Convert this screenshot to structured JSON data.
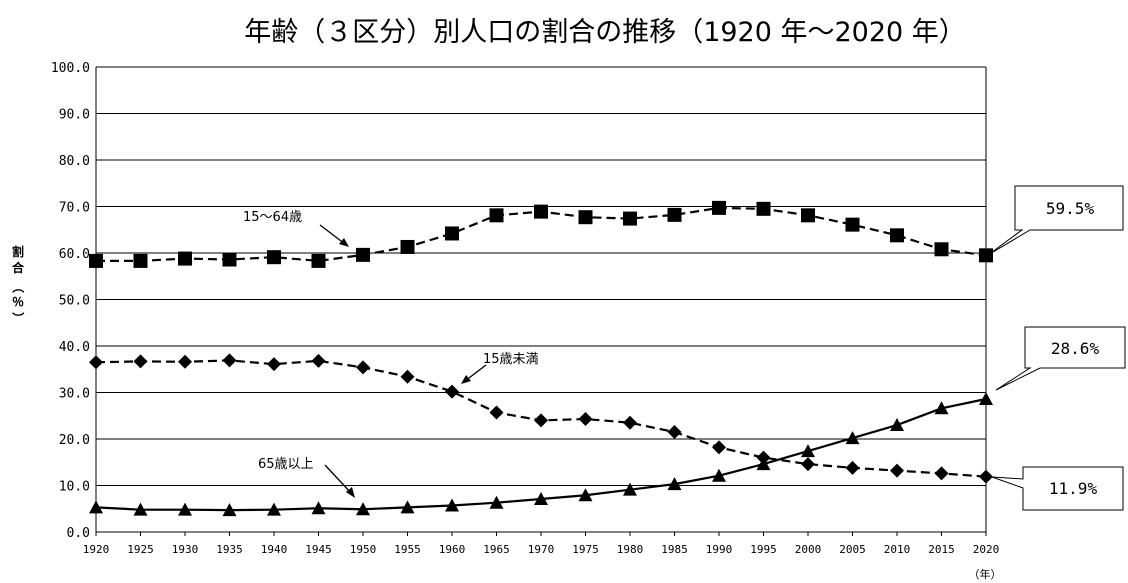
{
  "chart_data": {
    "type": "line",
    "title": "年齢（３区分）別人口の割合の推移（1920 年～2020 年）",
    "ylabel": [
      "割",
      "合",
      "（",
      "％",
      "）"
    ],
    "xunit": "（年）",
    "ylim": [
      0,
      100
    ],
    "ytick_labels": [
      "0.0",
      "10.0",
      "20.0",
      "30.0",
      "40.0",
      "50.0",
      "60.0",
      "70.0",
      "80.0",
      "90.0",
      "100.0"
    ],
    "x": [
      "1920",
      "1925",
      "1930",
      "1935",
      "1940",
      "1945",
      "1950",
      "1955",
      "1960",
      "1965",
      "1970",
      "1975",
      "1980",
      "1985",
      "1990",
      "1995",
      "2000",
      "2005",
      "2010",
      "2015",
      "2020"
    ],
    "grid": true,
    "series": [
      {
        "name": "15～64歳",
        "marker": "square",
        "linestyle": "dashed",
        "values": [
          58.3,
          58.3,
          58.8,
          58.6,
          59.1,
          58.3,
          59.6,
          61.3,
          64.2,
          68.1,
          68.9,
          67.7,
          67.4,
          68.2,
          69.7,
          69.5,
          68.1,
          66.1,
          63.8,
          60.8,
          59.5
        ]
      },
      {
        "name": "15歳未満",
        "marker": "diamond",
        "linestyle": "dashed",
        "values": [
          36.5,
          36.7,
          36.6,
          36.9,
          36.1,
          36.8,
          35.4,
          33.4,
          30.2,
          25.7,
          24.0,
          24.3,
          23.5,
          21.5,
          18.2,
          16.0,
          14.6,
          13.8,
          13.2,
          12.6,
          11.9
        ]
      },
      {
        "name": "65歳以上",
        "marker": "triangle",
        "linestyle": "solid",
        "values": [
          5.3,
          4.8,
          4.8,
          4.7,
          4.8,
          5.1,
          4.9,
          5.3,
          5.7,
          6.3,
          7.1,
          7.9,
          9.1,
          10.3,
          12.1,
          14.6,
          17.4,
          20.2,
          23.0,
          26.6,
          28.6
        ]
      }
    ],
    "callouts": [
      {
        "series": "15～64歳",
        "text": "59.5%"
      },
      {
        "series": "65歳以上",
        "text": "28.6%"
      },
      {
        "series": "15歳未満",
        "text": "11.9%"
      }
    ]
  },
  "colors": {
    "line": "#000000",
    "grid": "#000000",
    "background": "#ffffff"
  }
}
